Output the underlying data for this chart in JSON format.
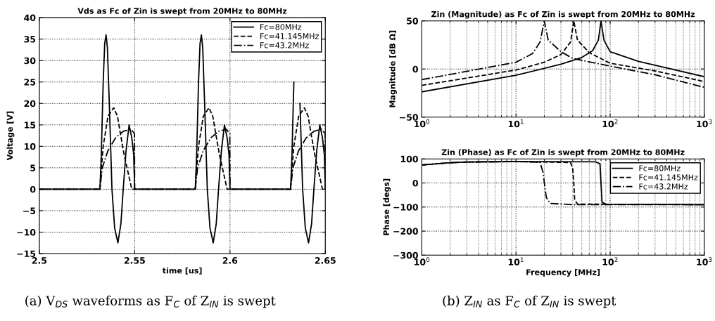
{
  "chart_data": [
    {
      "type": "line",
      "title": "Vds as Fc of Zin is swept from 20MHz to 80MHz",
      "xlabel": "time [us]",
      "ylabel": "Voltage [V]",
      "xlim": [
        2.5,
        2.65
      ],
      "xticks": [
        2.5,
        2.55,
        2.6,
        2.65
      ],
      "ylim": [
        -15,
        40
      ],
      "yticks": [
        {
          "value": -15,
          "label": "−15"
        },
        {
          "value": -10,
          "label": "−10"
        },
        {
          "value": -5,
          "label": "−5"
        },
        0,
        5,
        10,
        15,
        20,
        25,
        30,
        35,
        40
      ],
      "grid": true,
      "legend": "top right",
      "annotations": [
        "(a) V$_{DS}$ waveforms as F$_{C}$ of Z$_{IN}$ is swept"
      ],
      "series": [
        {
          "name": "Fc=80MHz",
          "color": "#000000",
          "line_style": "solid",
          "x": [
            2.5,
            2.5318,
            2.5325,
            2.5335,
            2.5343,
            2.535,
            2.5357,
            2.5367,
            2.5381,
            2.5395,
            2.5412,
            2.5428,
            2.544,
            2.5455,
            2.5471,
            2.5485,
            2.5495,
            2.55,
            2.5818,
            2.5825,
            2.5835,
            2.5843,
            2.585,
            2.5857,
            2.5867,
            2.5881,
            2.5895,
            2.5912,
            2.5928,
            2.594,
            2.5955,
            2.5971,
            2.5985,
            2.5995,
            2.6,
            2.6318,
            2.6325,
            2.6335,
            2.6343,
            2.635,
            2.6357,
            2.6367,
            2.6381,
            2.6395,
            2.6412,
            2.6428,
            2.644,
            2.6455,
            2.6471,
            2.6485,
            2.6495,
            2.65
          ],
          "values": [
            0,
            0,
            8,
            25,
            34,
            36,
            33,
            20,
            0,
            -9,
            -12.5,
            -8,
            0,
            9,
            15,
            12,
            8,
            0,
            0,
            8,
            25,
            34,
            36,
            33,
            20,
            0,
            -9,
            -12.5,
            -8,
            0,
            9,
            15,
            12,
            8,
            0,
            0,
            8,
            25,
            null,
            null,
            null,
            20,
            0,
            -9,
            -12.5,
            -8,
            0,
            9,
            15,
            12,
            8,
            0
          ]
        },
        {
          "name": "Fc=41.145MHz",
          "color": "#000000",
          "line_style": "dashed",
          "x": [
            2.5,
            2.5318,
            2.5322,
            2.5335,
            2.536,
            2.539,
            2.541,
            2.5425,
            2.5445,
            2.547,
            2.5485,
            2.55,
            2.5818,
            2.5822,
            2.5835,
            2.586,
            2.589,
            2.591,
            2.5925,
            2.5945,
            2.597,
            2.5985,
            2.6,
            2.6318,
            2.6322,
            2.6335,
            2.636,
            2.639,
            2.641,
            2.6425,
            2.6445,
            2.647,
            2.6485,
            2.65
          ],
          "values": [
            0,
            0,
            3,
            10,
            17,
            19,
            17,
            13,
            8,
            3,
            0,
            0,
            0,
            3,
            10,
            17,
            19,
            17,
            13,
            8,
            3,
            0,
            0,
            0,
            3,
            10,
            17,
            19,
            17,
            13,
            8,
            3,
            0,
            0
          ]
        },
        {
          "name": "Fc=43.2MHz",
          "color": "#000000",
          "line_style": "dashdot",
          "x": [
            2.5,
            2.5318,
            2.533,
            2.536,
            2.54,
            2.544,
            2.548,
            2.5499,
            2.55,
            2.5818,
            2.583,
            2.586,
            2.59,
            2.594,
            2.598,
            2.5999,
            2.6,
            2.6318,
            2.633,
            2.636,
            2.64,
            2.644,
            2.648,
            2.6499,
            2.65
          ],
          "values": [
            0,
            0,
            5,
            9,
            12,
            13.5,
            14,
            13,
            0,
            0,
            5,
            9,
            12,
            13.5,
            14,
            13,
            0,
            0,
            5,
            9,
            12,
            13.5,
            14,
            13,
            0
          ]
        }
      ]
    },
    {
      "type": "line",
      "title": "Zin (Magnitude) as Fc of Zin is swept from 20MHz to 80MHz",
      "ylabel": "Magnitude [dB Ω]",
      "log": "x",
      "xlim": [
        1,
        1000
      ],
      "xticks": [
        {
          "value": 1,
          "label": "10$^{0}$"
        },
        {
          "value": 10,
          "label": "10$^{1}$"
        },
        {
          "value": 100,
          "label": "10$^{2}$"
        },
        {
          "value": 1000,
          "label": "10$^{3}$"
        }
      ],
      "ylim": [
        -50,
        50
      ],
      "yticks": [
        {
          "value": -50,
          "label": "−50"
        },
        0,
        50
      ],
      "grid": true,
      "annotations": [
        "(b) Z$_{IN}$ as F$_{C}$ of Z$_{IN}$ is swept"
      ],
      "series": [
        {
          "color": "#000000",
          "line_style": "solid",
          "x": [
            1,
            10,
            30,
            50,
            65,
            75,
            80,
            86,
            100,
            200,
            1000
          ],
          "values": [
            -23.7,
            -6.5,
            5,
            12,
            19,
            30,
            50,
            30,
            18,
            8,
            -8
          ]
        },
        {
          "color": "#000000",
          "line_style": "dashed",
          "x": [
            1,
            10,
            20,
            30,
            38,
            41.1,
            45,
            60,
            100,
            300,
            1000
          ],
          "values": [
            -17,
            -1,
            7,
            15,
            28,
            50,
            30,
            17,
            6,
            -2,
            -13
          ]
        },
        {
          "color": "#000000",
          "line_style": "dashdot",
          "x": [
            1,
            10,
            15,
            18,
            20,
            22,
            30,
            40,
            100,
            300,
            1000
          ],
          "values": [
            -11,
            7,
            16,
            28,
            50,
            30,
            18,
            11,
            3,
            -6,
            -19
          ]
        }
      ]
    },
    {
      "type": "line",
      "title": "Zin (Phase) as Fc of Zin is swept from 20MHz to 80MHz",
      "xlabel": "Frequency [MHz]",
      "ylabel": "Phase [degs]",
      "log": "x",
      "xlim": [
        1,
        1000
      ],
      "xticks": [
        {
          "value": 1,
          "label": "10$^{0}$"
        },
        {
          "value": 10,
          "label": "10$^{1}$"
        },
        {
          "value": 100,
          "label": "10$^{2}$"
        },
        {
          "value": 1000,
          "label": "10$^{3}$"
        }
      ],
      "ylim": [
        -300,
        100
      ],
      "yticks": [
        {
          "value": -300,
          "label": "−300"
        },
        {
          "value": -200,
          "label": "−200"
        },
        {
          "value": -100,
          "label": "−100"
        },
        0,
        100
      ],
      "grid": true,
      "legend": "top right",
      "series": [
        {
          "name": "Fc=80MHz",
          "color": "#000000",
          "line_style": "solid",
          "x": [
            1,
            2,
            3,
            10,
            70,
            78,
            80,
            82,
            90,
            1000
          ],
          "values": [
            75,
            84,
            87,
            89,
            88,
            80,
            0,
            -80,
            -88,
            -90
          ]
        },
        {
          "name": "Fc=41.145MHz",
          "color": "#000000",
          "line_style": "dashed",
          "x": [
            1,
            2,
            3,
            10,
            38,
            40,
            41.1,
            42,
            45,
            1000
          ],
          "values": [
            75,
            84,
            87,
            89,
            85,
            60,
            0,
            -70,
            -88,
            -90
          ]
        },
        {
          "name": "Fc=43.2MHz",
          "color": "#000000",
          "line_style": "dashdot",
          "x": [
            1,
            2,
            3,
            10,
            18,
            19.5,
            20,
            21,
            23,
            40,
            1000
          ],
          "values": [
            75,
            84,
            87,
            89,
            86,
            40,
            0,
            -60,
            -85,
            -90,
            -90
          ]
        }
      ]
    }
  ]
}
